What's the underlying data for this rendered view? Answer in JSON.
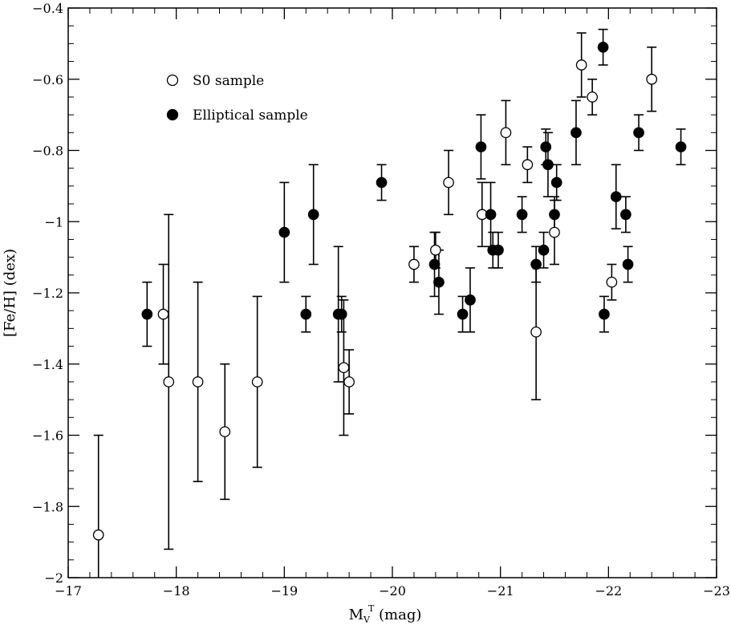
{
  "chart_data": {
    "type": "scatter",
    "title": "",
    "xlabel": "M",
    "xlabel_sub": "V",
    "xlabel_sup": "T",
    "xlabel_suffix": " (mag)",
    "ylabel": "[Fe/H] (dex)",
    "xlim": [
      -17,
      -23
    ],
    "ylim": [
      -2,
      -0.4
    ],
    "x_ticks": [
      -17,
      -18,
      -19,
      -20,
      -21,
      -22,
      -23
    ],
    "x_tick_labels": [
      "−17",
      "−18",
      "−19",
      "−20",
      "−21",
      "−22",
      "−23"
    ],
    "y_ticks": [
      -2,
      -1.8,
      -1.6,
      -1.4,
      -1.2,
      -1,
      -0.8,
      -0.6,
      -0.4
    ],
    "y_tick_labels": [
      "−2",
      "−1.8",
      "−1.6",
      "−1.4",
      "−1.2",
      "−1",
      "−0.8",
      "−0.6",
      "−0.4"
    ],
    "grid": false,
    "legend_position": "top-left",
    "series": [
      {
        "name": "S0 sample",
        "marker": "open-circle",
        "points": [
          {
            "x": -17.28,
            "y": -1.88,
            "err_lo": 0.28,
            "err_hi": 0.28
          },
          {
            "x": -17.88,
            "y": -1.26,
            "err_lo": 0.14,
            "err_hi": 0.14
          },
          {
            "x": -17.93,
            "y": -1.45,
            "err_lo": 0.47,
            "err_hi": 0.47
          },
          {
            "x": -18.2,
            "y": -1.45,
            "err_lo": 0.28,
            "err_hi": 0.28
          },
          {
            "x": -18.45,
            "y": -1.59,
            "err_lo": 0.19,
            "err_hi": 0.19
          },
          {
            "x": -18.75,
            "y": -1.45,
            "err_lo": 0.24,
            "err_hi": 0.24
          },
          {
            "x": -19.55,
            "y": -1.41,
            "err_lo": 0.19,
            "err_hi": 0.19
          },
          {
            "x": -19.6,
            "y": -1.45,
            "err_lo": 0.09,
            "err_hi": 0.09
          },
          {
            "x": -20.2,
            "y": -1.12,
            "err_lo": 0.05,
            "err_hi": 0.05
          },
          {
            "x": -20.4,
            "y": -1.08,
            "err_lo": 0.05,
            "err_hi": 0.05
          },
          {
            "x": -20.52,
            "y": -0.89,
            "err_lo": 0.09,
            "err_hi": 0.09
          },
          {
            "x": -20.83,
            "y": -0.98,
            "err_lo": 0.09,
            "err_hi": 0.09
          },
          {
            "x": -21.05,
            "y": -0.75,
            "err_lo": 0.09,
            "err_hi": 0.09
          },
          {
            "x": -21.25,
            "y": -0.84,
            "err_lo": 0.05,
            "err_hi": 0.05
          },
          {
            "x": -21.33,
            "y": -1.31,
            "err_lo": 0.19,
            "err_hi": 0.19
          },
          {
            "x": -21.5,
            "y": -1.03,
            "err_lo": 0.09,
            "err_hi": 0.09
          },
          {
            "x": -21.75,
            "y": -0.56,
            "err_lo": 0.09,
            "err_hi": 0.09
          },
          {
            "x": -21.85,
            "y": -0.65,
            "err_lo": 0.05,
            "err_hi": 0.05
          },
          {
            "x": -22.03,
            "y": -1.17,
            "err_lo": 0.05,
            "err_hi": 0.05
          },
          {
            "x": -22.4,
            "y": -0.6,
            "err_lo": 0.09,
            "err_hi": 0.09
          }
        ]
      },
      {
        "name": "Elliptical sample",
        "marker": "filled-circle",
        "points": [
          {
            "x": -17.73,
            "y": -1.26,
            "err_lo": 0.09,
            "err_hi": 0.09
          },
          {
            "x": -19.0,
            "y": -1.03,
            "err_lo": 0.14,
            "err_hi": 0.14
          },
          {
            "x": -19.2,
            "y": -1.26,
            "err_lo": 0.05,
            "err_hi": 0.05
          },
          {
            "x": -19.27,
            "y": -0.98,
            "err_lo": 0.14,
            "err_hi": 0.14
          },
          {
            "x": -19.5,
            "y": -1.26,
            "err_lo": 0.19,
            "err_hi": 0.19
          },
          {
            "x": -19.53,
            "y": -1.26,
            "err_lo": 0.05,
            "err_hi": 0.05
          },
          {
            "x": -19.9,
            "y": -0.89,
            "err_lo": 0.05,
            "err_hi": 0.05
          },
          {
            "x": -20.39,
            "y": -1.12,
            "err_lo": 0.09,
            "err_hi": 0.09
          },
          {
            "x": -20.43,
            "y": -1.17,
            "err_lo": 0.09,
            "err_hi": 0.09
          },
          {
            "x": -20.65,
            "y": -1.26,
            "err_lo": 0.05,
            "err_hi": 0.05
          },
          {
            "x": -20.72,
            "y": -1.22,
            "err_lo": 0.09,
            "err_hi": 0.09
          },
          {
            "x": -20.82,
            "y": -0.79,
            "err_lo": 0.09,
            "err_hi": 0.09
          },
          {
            "x": -20.91,
            "y": -0.98,
            "err_lo": 0.09,
            "err_hi": 0.09
          },
          {
            "x": -20.93,
            "y": -1.08,
            "err_lo": 0.05,
            "err_hi": 0.05
          },
          {
            "x": -20.98,
            "y": -1.08,
            "err_lo": 0.05,
            "err_hi": 0.05
          },
          {
            "x": -21.2,
            "y": -0.98,
            "err_lo": 0.05,
            "err_hi": 0.05
          },
          {
            "x": -21.33,
            "y": -1.12,
            "err_lo": 0.05,
            "err_hi": 0.05
          },
          {
            "x": -21.4,
            "y": -1.08,
            "err_lo": 0.05,
            "err_hi": 0.05
          },
          {
            "x": -21.42,
            "y": -0.79,
            "err_lo": 0.05,
            "err_hi": 0.05
          },
          {
            "x": -21.44,
            "y": -0.84,
            "err_lo": 0.09,
            "err_hi": 0.09
          },
          {
            "x": -21.5,
            "y": -0.98,
            "err_lo": 0.05,
            "err_hi": 0.05
          },
          {
            "x": -21.52,
            "y": -0.89,
            "err_lo": 0.05,
            "err_hi": 0.05
          },
          {
            "x": -21.7,
            "y": -0.75,
            "err_lo": 0.09,
            "err_hi": 0.09
          },
          {
            "x": -21.95,
            "y": -0.51,
            "err_lo": 0.05,
            "err_hi": 0.05
          },
          {
            "x": -21.96,
            "y": -1.26,
            "err_lo": 0.05,
            "err_hi": 0.05
          },
          {
            "x": -22.07,
            "y": -0.93,
            "err_lo": 0.09,
            "err_hi": 0.09
          },
          {
            "x": -22.16,
            "y": -0.98,
            "err_lo": 0.05,
            "err_hi": 0.05
          },
          {
            "x": -22.18,
            "y": -1.12,
            "err_lo": 0.05,
            "err_hi": 0.05
          },
          {
            "x": -22.28,
            "y": -0.75,
            "err_lo": 0.05,
            "err_hi": 0.05
          },
          {
            "x": -22.67,
            "y": -0.79,
            "err_lo": 0.05,
            "err_hi": 0.05
          }
        ]
      }
    ]
  }
}
